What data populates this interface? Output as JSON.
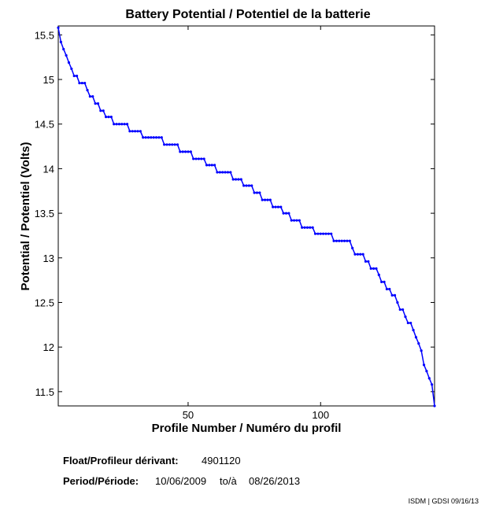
{
  "chart_data": {
    "type": "line",
    "title": "Battery Potential / Potentiel de la batterie",
    "xlabel": "Profile Number / Numéro du profil",
    "ylabel": "Potential / Potentiel (Volts)",
    "color": "#0000ff",
    "x": [
      1,
      2,
      3,
      4,
      5,
      6,
      7,
      8,
      9,
      10,
      11,
      12,
      13,
      14,
      15,
      16,
      17,
      18,
      19,
      20,
      21,
      22,
      23,
      24,
      25,
      26,
      27,
      28,
      29,
      30,
      31,
      32,
      33,
      34,
      35,
      36,
      37,
      38,
      39,
      40,
      41,
      42,
      43,
      44,
      45,
      46,
      47,
      48,
      49,
      50,
      51,
      52,
      53,
      54,
      55,
      56,
      57,
      58,
      59,
      60,
      61,
      62,
      63,
      64,
      65,
      66,
      67,
      68,
      69,
      70,
      71,
      72,
      73,
      74,
      75,
      76,
      77,
      78,
      79,
      80,
      81,
      82,
      83,
      84,
      85,
      86,
      87,
      88,
      89,
      90,
      91,
      92,
      93,
      94,
      95,
      96,
      97,
      98,
      99,
      100,
      101,
      102,
      103,
      104,
      105,
      106,
      107,
      108,
      109,
      110,
      111,
      112,
      113,
      114,
      115,
      116,
      117,
      118,
      119,
      120,
      121,
      122,
      123,
      124,
      125,
      126,
      127,
      128,
      129,
      130,
      131,
      132,
      133,
      134,
      135,
      136,
      137,
      138,
      139,
      140,
      141,
      142,
      143
    ],
    "values": [
      15.58,
      15.42,
      15.34,
      15.27,
      15.19,
      15.12,
      15.04,
      15.04,
      14.96,
      14.96,
      14.96,
      14.88,
      14.81,
      14.81,
      14.73,
      14.73,
      14.65,
      14.65,
      14.58,
      14.58,
      14.58,
      14.5,
      14.5,
      14.5,
      14.5,
      14.5,
      14.5,
      14.42,
      14.42,
      14.42,
      14.42,
      14.42,
      14.35,
      14.35,
      14.35,
      14.35,
      14.35,
      14.35,
      14.35,
      14.35,
      14.27,
      14.27,
      14.27,
      14.27,
      14.27,
      14.27,
      14.19,
      14.19,
      14.19,
      14.19,
      14.19,
      14.11,
      14.11,
      14.11,
      14.11,
      14.11,
      14.04,
      14.04,
      14.04,
      14.04,
      13.96,
      13.96,
      13.96,
      13.96,
      13.96,
      13.96,
      13.88,
      13.88,
      13.88,
      13.88,
      13.81,
      13.81,
      13.81,
      13.81,
      13.73,
      13.73,
      13.73,
      13.65,
      13.65,
      13.65,
      13.65,
      13.57,
      13.57,
      13.57,
      13.57,
      13.5,
      13.5,
      13.5,
      13.42,
      13.42,
      13.42,
      13.42,
      13.34,
      13.34,
      13.34,
      13.34,
      13.34,
      13.27,
      13.27,
      13.27,
      13.27,
      13.27,
      13.27,
      13.27,
      13.19,
      13.19,
      13.19,
      13.19,
      13.19,
      13.19,
      13.19,
      13.11,
      13.04,
      13.04,
      13.04,
      13.04,
      12.96,
      12.96,
      12.88,
      12.88,
      12.88,
      12.81,
      12.73,
      12.73,
      12.65,
      12.65,
      12.58,
      12.58,
      12.5,
      12.42,
      12.42,
      12.34,
      12.27,
      12.27,
      12.19,
      12.11,
      12.04,
      11.96,
      11.8,
      11.73,
      11.65,
      11.58,
      11.34
    ],
    "xlim": [
      1,
      143
    ],
    "xticks": [
      50,
      100
    ],
    "ylim": [
      11.34,
      15.6
    ],
    "yticks": [
      11.5,
      12,
      12.5,
      13,
      13.5,
      14,
      14.5,
      15,
      15.5
    ],
    "grid": false
  },
  "info": {
    "float_label": "Float/Profileur dérivant:",
    "float_id": "4901120",
    "period_label": "Period/Période:",
    "start": "10/06/2009",
    "to": "to/à",
    "end": "08/26/2013",
    "credit": "ISDM | GDSI 09/16/13"
  }
}
